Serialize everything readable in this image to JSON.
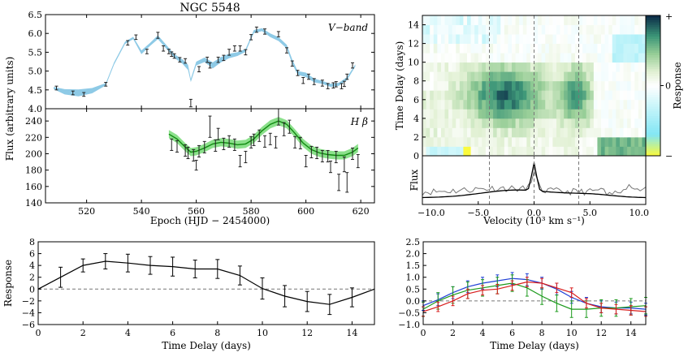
{
  "chart_data": [
    {
      "id": "lightcurves",
      "type": "line",
      "title": "NGC 5548",
      "xlabel": "Epoch (HJD − 2454000)",
      "ylabel": "Flux (arbitrary units)",
      "xlim": [
        505,
        625
      ],
      "xticks": [
        520,
        540,
        560,
        580,
        600,
        620
      ],
      "panels": [
        {
          "name": "V-band",
          "label": "V−band",
          "ylim": [
            4.0,
            6.5
          ],
          "yticks": [
            "4.0",
            "4.5",
            "5.0",
            "5.5",
            "6.0",
            "6.5"
          ],
          "band_color": "#8ecae6",
          "band_x": [
            508,
            512,
            517,
            522,
            527,
            530,
            534,
            537,
            540,
            543,
            546,
            549,
            552,
            555,
            557,
            558,
            560,
            563,
            566,
            569,
            572,
            575,
            578,
            581,
            584,
            587,
            590,
            593,
            595,
            597,
            600,
            603,
            606,
            609,
            612,
            615,
            618
          ],
          "band_y": [
            4.55,
            4.45,
            4.42,
            4.48,
            4.65,
            5.2,
            5.75,
            5.88,
            5.5,
            5.7,
            5.9,
            5.65,
            5.4,
            5.25,
            5.1,
            4.75,
            5.2,
            5.3,
            5.15,
            5.3,
            5.4,
            5.45,
            5.55,
            6.05,
            6.1,
            5.95,
            5.85,
            5.65,
            5.25,
            4.95,
            4.9,
            4.75,
            4.7,
            4.62,
            4.65,
            4.8,
            5.15
          ],
          "band_w": [
            0.03,
            0.07,
            0.09,
            0.07,
            0.03,
            0.03,
            0.03,
            0.03,
            0.05,
            0.04,
            0.05,
            0.05,
            0.05,
            0.06,
            0.07,
            0.04,
            0.05,
            0.06,
            0.08,
            0.07,
            0.06,
            0.05,
            0.04,
            0.04,
            0.04,
            0.05,
            0.05,
            0.05,
            0.06,
            0.05,
            0.06,
            0.05,
            0.04,
            0.04,
            0.04,
            0.04,
            0.03
          ],
          "points": {
            "x": [
              509,
              515,
              519,
              527,
              535,
              538,
              542,
              546,
              548,
              550,
              551,
              552,
              554,
              556,
              558,
              561,
              564,
              565,
              568,
              570,
              572,
              574,
              576,
              578,
              580,
              582,
              585,
              590,
              593,
              595,
              597,
              599,
              601,
              603,
              606,
              608,
              610,
              611,
              613,
              614,
              615,
              617
            ],
            "y": [
              4.55,
              4.42,
              4.38,
              4.65,
              5.75,
              5.9,
              5.52,
              5.95,
              5.6,
              5.52,
              5.45,
              5.4,
              5.3,
              5.27,
              4.15,
              5.05,
              5.3,
              5.15,
              5.3,
              5.35,
              5.5,
              5.6,
              5.6,
              5.5,
              5.9,
              6.1,
              6.05,
              5.98,
              5.55,
              5.2,
              4.95,
              4.75,
              4.85,
              4.72,
              4.68,
              4.6,
              4.62,
              4.65,
              4.6,
              4.66,
              4.85,
              5.15
            ],
            "err": [
              0.05,
              0.05,
              0.05,
              0.05,
              0.06,
              0.06,
              0.06,
              0.08,
              0.07,
              0.06,
              0.06,
              0.06,
              0.06,
              0.06,
              0.1,
              0.07,
              0.07,
              0.07,
              0.07,
              0.07,
              0.08,
              0.07,
              0.07,
              0.07,
              0.07,
              0.07,
              0.07,
              0.07,
              0.07,
              0.07,
              0.07,
              0.08,
              0.07,
              0.08,
              0.08,
              0.07,
              0.07,
              0.07,
              0.07,
              0.07,
              0.07,
              0.07
            ]
          }
        },
        {
          "name": "Hbeta",
          "label": "H β",
          "ylim": [
            140,
            255
          ],
          "yticks": [
            "140",
            "160",
            "180",
            "200",
            "220",
            "240"
          ],
          "band_color": "#8be08b",
          "line_color": "#0f8a0f",
          "line_x": [
            550,
            553,
            556,
            558,
            560,
            563,
            566,
            569,
            572,
            575,
            578,
            581,
            584,
            587,
            590,
            593,
            596,
            599,
            602,
            605,
            608,
            611,
            614,
            617,
            619
          ],
          "line_y": [
            224,
            218,
            208,
            202,
            203,
            207,
            212,
            214,
            213,
            211,
            212,
            218,
            228,
            236,
            240,
            236,
            225,
            213,
            205,
            201,
            199,
            198,
            198,
            202,
            207
          ],
          "band_w": 5,
          "points": {
            "x": [
              551,
              553,
              556,
              557,
              559,
              560,
              561,
              563,
              565,
              567,
              568,
              570,
              572,
              574,
              576,
              578,
              580,
              581,
              583,
              585,
              587,
              589,
              590,
              592,
              594,
              596,
              598,
              600,
              602,
              604,
              606,
              608,
              609,
              611,
              612,
              614,
              615,
              617,
              619
            ],
            "y": [
              211,
              209,
              204,
              201,
              198,
              186,
              203,
              208,
              233,
              210,
              224,
              212,
              215,
              211,
              191,
              196,
              214,
              217,
              222,
              215,
              218,
              214,
              245,
              230,
              233,
              214,
              213,
              191,
              202,
              201,
              197,
              197,
              184,
              196,
              165,
              187,
              165,
              200,
              191
            ],
            "err": [
              7,
              7,
              7,
              7,
              7,
              6,
              7,
              7,
              13,
              7,
              7,
              7,
              7,
              7,
              7,
              7,
              7,
              7,
              7,
              7,
              7,
              7,
              10,
              8,
              8,
              7,
              7,
              7,
              7,
              7,
              7,
              7,
              7,
              7,
              10,
              9,
              12,
              7,
              8
            ]
          }
        }
      ]
    },
    {
      "id": "velocity-delay-map",
      "type": "heatmap",
      "ylabel": "Time Delay (days)",
      "xlim": [
        -10,
        10
      ],
      "ylim": [
        0,
        15
      ],
      "yticks": [
        "0",
        "2",
        "4",
        "6",
        "8",
        "10",
        "12",
        "14"
      ],
      "colorbar_label": "Response",
      "colorbar_ticks": [
        "+",
        "0",
        "−"
      ],
      "dashed_velocities": [
        -4,
        0,
        4
      ]
    },
    {
      "id": "rms-spectrum",
      "type": "line",
      "xlabel": "Velocity (10³ km s⁻¹)",
      "ylabel": "Flux",
      "xlim": [
        -10,
        10
      ],
      "xticks": [
        "−10.0",
        "−5.0",
        "0.0",
        "5.0",
        "10.0"
      ],
      "series": [
        {
          "name": "mean spectrum",
          "color": "#000000"
        },
        {
          "name": "rms spectrum",
          "color": "#777777"
        }
      ]
    },
    {
      "id": "delay-response",
      "type": "line",
      "xlabel": "Time Delay (days)",
      "ylabel": "Response",
      "xlim": [
        0,
        15
      ],
      "ylim": [
        -6,
        8
      ],
      "xticks": [
        "0",
        "2",
        "4",
        "6",
        "8",
        "10",
        "12",
        "14"
      ],
      "yticks": [
        "−6",
        "−4",
        "−2",
        "0",
        "2",
        "4",
        "6",
        "8"
      ],
      "x": [
        0,
        1,
        2,
        3,
        4,
        5,
        6,
        7,
        8,
        9,
        10,
        11,
        12,
        13,
        14,
        15
      ],
      "y": [
        0,
        2,
        4,
        4.7,
        4.4,
        4,
        3.8,
        3.4,
        3.4,
        2.3,
        0.1,
        -1.2,
        -2.1,
        -2.6,
        -1.4,
        0
      ],
      "err": [
        0,
        1.7,
        1.1,
        1.3,
        1.5,
        1.5,
        1.6,
        1.5,
        1.6,
        1.6,
        1.8,
        1.8,
        1.7,
        1.7,
        1.6,
        0
      ]
    },
    {
      "id": "velocity-bin-response",
      "type": "line",
      "xlabel": "Time Delay (days)",
      "ylim": [
        -1.0,
        2.5
      ],
      "xlim": [
        0,
        15
      ],
      "xticks": [
        "0",
        "2",
        "4",
        "6",
        "8",
        "10",
        "12",
        "14"
      ],
      "yticks": [
        "−1.0",
        "−0.5",
        "0.0",
        "0.5",
        "1.0",
        "1.5",
        "2.0",
        "2.5"
      ],
      "series": [
        {
          "name": "blue",
          "color": "#1f3fd6",
          "x": [
            0,
            1,
            2,
            3,
            4,
            5,
            6,
            7,
            8,
            9,
            10,
            11,
            12,
            13,
            14,
            15
          ],
          "y": [
            -0.2,
            0.05,
            0.35,
            0.6,
            0.75,
            0.85,
            0.95,
            0.9,
            0.75,
            0.5,
            0.15,
            -0.1,
            -0.25,
            -0.3,
            -0.3,
            -0.35
          ],
          "err": [
            0.2,
            0.25,
            0.25,
            0.25,
            0.25,
            0.25,
            0.25,
            0.25,
            0.25,
            0.25,
            0.25,
            0.25,
            0.25,
            0.25,
            0.25,
            0.25
          ]
        },
        {
          "name": "green",
          "color": "#1c9a1c",
          "x": [
            0,
            1,
            2,
            3,
            4,
            5,
            6,
            7,
            8,
            9,
            10,
            11,
            12,
            13,
            14,
            15
          ],
          "y": [
            -0.35,
            0.0,
            0.25,
            0.45,
            0.55,
            0.65,
            0.75,
            0.55,
            0.2,
            -0.1,
            -0.35,
            -0.35,
            -0.3,
            -0.3,
            -0.25,
            -0.2
          ],
          "err": [
            0.3,
            0.35,
            0.35,
            0.35,
            0.35,
            0.35,
            0.35,
            0.35,
            0.35,
            0.35,
            0.35,
            0.35,
            0.35,
            0.35,
            0.35,
            0.35
          ]
        },
        {
          "name": "red",
          "color": "#d81c1c",
          "x": [
            0,
            1,
            2,
            3,
            4,
            5,
            6,
            7,
            8,
            9,
            10,
            11,
            12,
            13,
            14,
            15
          ],
          "y": [
            -0.45,
            -0.25,
            0.0,
            0.3,
            0.45,
            0.5,
            0.65,
            0.8,
            0.75,
            0.55,
            0.35,
            -0.1,
            -0.3,
            -0.35,
            -0.4,
            -0.45
          ],
          "err": [
            0.2,
            0.2,
            0.2,
            0.2,
            0.2,
            0.2,
            0.2,
            0.2,
            0.2,
            0.2,
            0.2,
            0.2,
            0.2,
            0.2,
            0.2,
            0.2
          ]
        }
      ]
    }
  ]
}
